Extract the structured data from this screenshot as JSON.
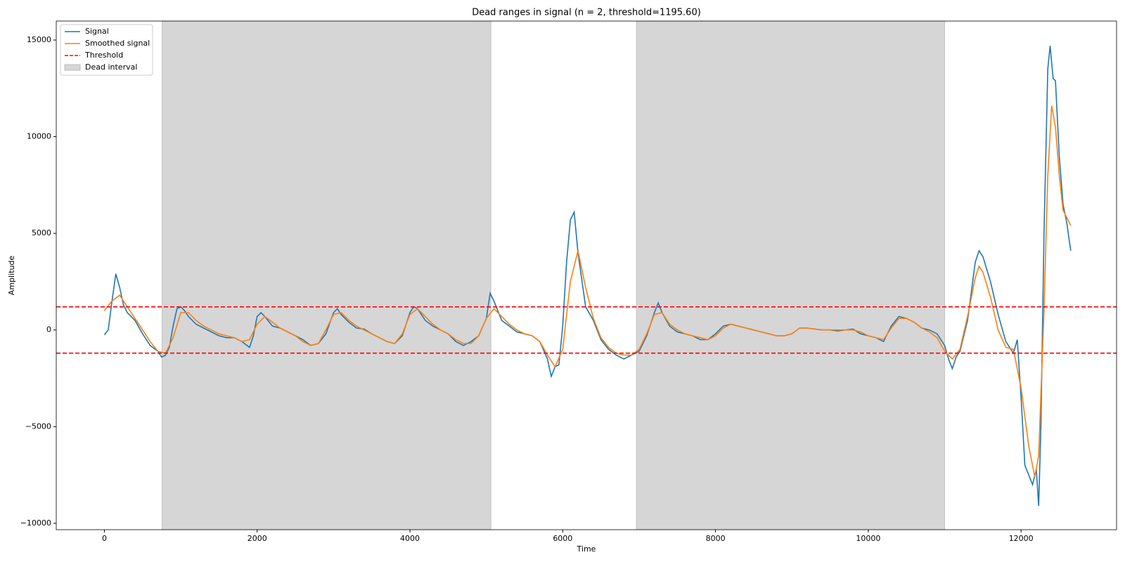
{
  "chart_data": {
    "type": "line",
    "title": "Dead ranges in signal (n = 2, threshold=1195.60)",
    "xlabel": "Time",
    "ylabel": "Amplitude",
    "xlim": [
      -630,
      13250
    ],
    "ylim": [
      -10330,
      15980
    ],
    "xticks": [
      0,
      2000,
      4000,
      6000,
      8000,
      10000,
      12000
    ],
    "yticks": [
      {
        "value": -10000,
        "label": "−10000"
      },
      {
        "value": -5000,
        "label": "−5000"
      },
      0,
      5000,
      10000,
      15000
    ],
    "legend": "upper left",
    "threshold": {
      "name": "Threshold",
      "color": "#ff0000",
      "values": [
        1195.6,
        -1195.6
      ]
    },
    "dead_intervals": {
      "name": "Dead interval",
      "color": "#d6d6d6",
      "ranges": [
        [
          755,
          5060
        ],
        [
          6965,
          11000
        ]
      ]
    },
    "series": [
      {
        "name": "Signal",
        "color": "#1f77b4",
        "x": [
          0,
          50,
          100,
          150,
          200,
          250,
          300,
          400,
          500,
          600,
          700,
          750,
          800,
          850,
          900,
          950,
          1000,
          1050,
          1100,
          1200,
          1300,
          1400,
          1500,
          1600,
          1700,
          1800,
          1900,
          1950,
          2000,
          2050,
          2100,
          2200,
          2300,
          2400,
          2500,
          2600,
          2700,
          2800,
          2900,
          3000,
          3050,
          3100,
          3200,
          3300,
          3400,
          3500,
          3600,
          3700,
          3800,
          3900,
          4000,
          4050,
          4100,
          4200,
          4300,
          4400,
          4500,
          4600,
          4700,
          4800,
          4900,
          5000,
          5050,
          5100,
          5200,
          5300,
          5400,
          5500,
          5600,
          5700,
          5800,
          5850,
          5900,
          5950,
          6000,
          6050,
          6100,
          6150,
          6200,
          6300,
          6400,
          6500,
          6600,
          6700,
          6800,
          6900,
          7000,
          7100,
          7200,
          7250,
          7300,
          7400,
          7500,
          7600,
          7700,
          7800,
          7900,
          8000,
          8100,
          8200,
          8300,
          8400,
          8500,
          8600,
          8700,
          8800,
          8900,
          9000,
          9100,
          9200,
          9300,
          9400,
          9500,
          9600,
          9700,
          9800,
          9900,
          10000,
          10100,
          10200,
          10300,
          10400,
          10500,
          10600,
          10700,
          10800,
          10900,
          11000,
          11050,
          11100,
          11150,
          11200,
          11300,
          11400,
          11450,
          11500,
          11600,
          11700,
          11800,
          11900,
          11950,
          12000,
          12050,
          12100,
          12150,
          12200,
          12230,
          12260,
          12300,
          12350,
          12380,
          12420,
          12450,
          12500,
          12550,
          12600,
          12650
        ],
        "values": [
          -250,
          0,
          1500,
          2900,
          2200,
          1300,
          900,
          500,
          -200,
          -800,
          -1100,
          -1400,
          -1300,
          -900,
          200,
          1100,
          1200,
          1000,
          700,
          300,
          100,
          -100,
          -300,
          -400,
          -400,
          -600,
          -900,
          -300,
          700,
          900,
          700,
          200,
          100,
          -100,
          -300,
          -500,
          -800,
          -700,
          -200,
          900,
          1100,
          800,
          400,
          100,
          50,
          -200,
          -400,
          -600,
          -700,
          -300,
          900,
          1200,
          1100,
          500,
          200,
          0,
          -200,
          -600,
          -800,
          -600,
          -300,
          600,
          1900,
          1500,
          500,
          200,
          -100,
          -200,
          -300,
          -600,
          -1500,
          -2400,
          -1900,
          -1800,
          200,
          3500,
          5700,
          6100,
          4000,
          1200,
          500,
          -500,
          -1000,
          -1300,
          -1500,
          -1300,
          -1100,
          -300,
          900,
          1400,
          900,
          200,
          -100,
          -200,
          -300,
          -500,
          -500,
          -200,
          200,
          300,
          200,
          100,
          0,
          -100,
          -200,
          -300,
          -300,
          -200,
          100,
          100,
          50,
          0,
          0,
          -50,
          0,
          50,
          -200,
          -300,
          -400,
          -600,
          200,
          700,
          600,
          400,
          100,
          0,
          -200,
          -800,
          -1500,
          -2000,
          -1400,
          -1100,
          500,
          3500,
          4100,
          3800,
          2500,
          800,
          -600,
          -1200,
          -500,
          -3500,
          -7000,
          -7500,
          -8000,
          -7200,
          -9100,
          -5000,
          5000,
          13500,
          14700,
          13000,
          12900,
          9000,
          6500,
          5500,
          4100
        ]
      },
      {
        "name": "Smoothed signal",
        "color": "#ff7f0e",
        "x": [
          0,
          100,
          200,
          300,
          400,
          500,
          600,
          700,
          800,
          900,
          1000,
          1100,
          1200,
          1300,
          1400,
          1500,
          1600,
          1700,
          1800,
          1900,
          2000,
          2100,
          2200,
          2300,
          2400,
          2500,
          2600,
          2700,
          2800,
          2900,
          3000,
          3100,
          3200,
          3300,
          3400,
          3500,
          3600,
          3700,
          3800,
          3900,
          4000,
          4100,
          4200,
          4300,
          4400,
          4500,
          4600,
          4700,
          4800,
          4900,
          5000,
          5100,
          5200,
          5300,
          5400,
          5500,
          5600,
          5700,
          5800,
          5900,
          6000,
          6100,
          6200,
          6300,
          6400,
          6500,
          6600,
          6700,
          6800,
          6900,
          7000,
          7100,
          7200,
          7300,
          7400,
          7500,
          7600,
          7700,
          7800,
          7900,
          8000,
          8100,
          8200,
          8300,
          8400,
          8500,
          8600,
          8700,
          8800,
          8900,
          9000,
          9100,
          9200,
          9300,
          9400,
          9500,
          9600,
          9700,
          9800,
          9900,
          10000,
          10100,
          10200,
          10300,
          10400,
          10500,
          10600,
          10700,
          10800,
          10900,
          11000,
          11100,
          11200,
          11300,
          11400,
          11450,
          11500,
          11600,
          11700,
          11800,
          11900,
          12000,
          12100,
          12180,
          12230,
          12300,
          12350,
          12400,
          12450,
          12500,
          12550,
          12650
        ],
        "values": [
          1000,
          1500,
          1800,
          1200,
          600,
          0,
          -600,
          -1100,
          -1200,
          -400,
          900,
          900,
          500,
          200,
          0,
          -200,
          -300,
          -400,
          -600,
          -500,
          300,
          700,
          400,
          100,
          -100,
          -300,
          -600,
          -800,
          -700,
          0,
          800,
          900,
          500,
          200,
          0,
          -200,
          -400,
          -600,
          -700,
          -200,
          800,
          1100,
          700,
          300,
          0,
          -200,
          -500,
          -700,
          -700,
          -300,
          600,
          1100,
          700,
          300,
          0,
          -200,
          -300,
          -600,
          -1300,
          -1900,
          -1000,
          2500,
          4100,
          2200,
          600,
          -400,
          -900,
          -1200,
          -1300,
          -1300,
          -1000,
          -200,
          800,
          900,
          300,
          0,
          -200,
          -300,
          -400,
          -500,
          -300,
          100,
          300,
          200,
          100,
          0,
          -100,
          -200,
          -300,
          -300,
          -200,
          100,
          100,
          50,
          0,
          0,
          0,
          0,
          0,
          -100,
          -300,
          -400,
          -500,
          100,
          600,
          600,
          400,
          100,
          -100,
          -400,
          -1100,
          -1500,
          -1000,
          700,
          2700,
          3300,
          3000,
          1700,
          0,
          -900,
          -1000,
          -3000,
          -6000,
          -7600,
          -6500,
          1000,
          8000,
          11600,
          10500,
          8000,
          6200,
          5400
        ]
      }
    ]
  }
}
